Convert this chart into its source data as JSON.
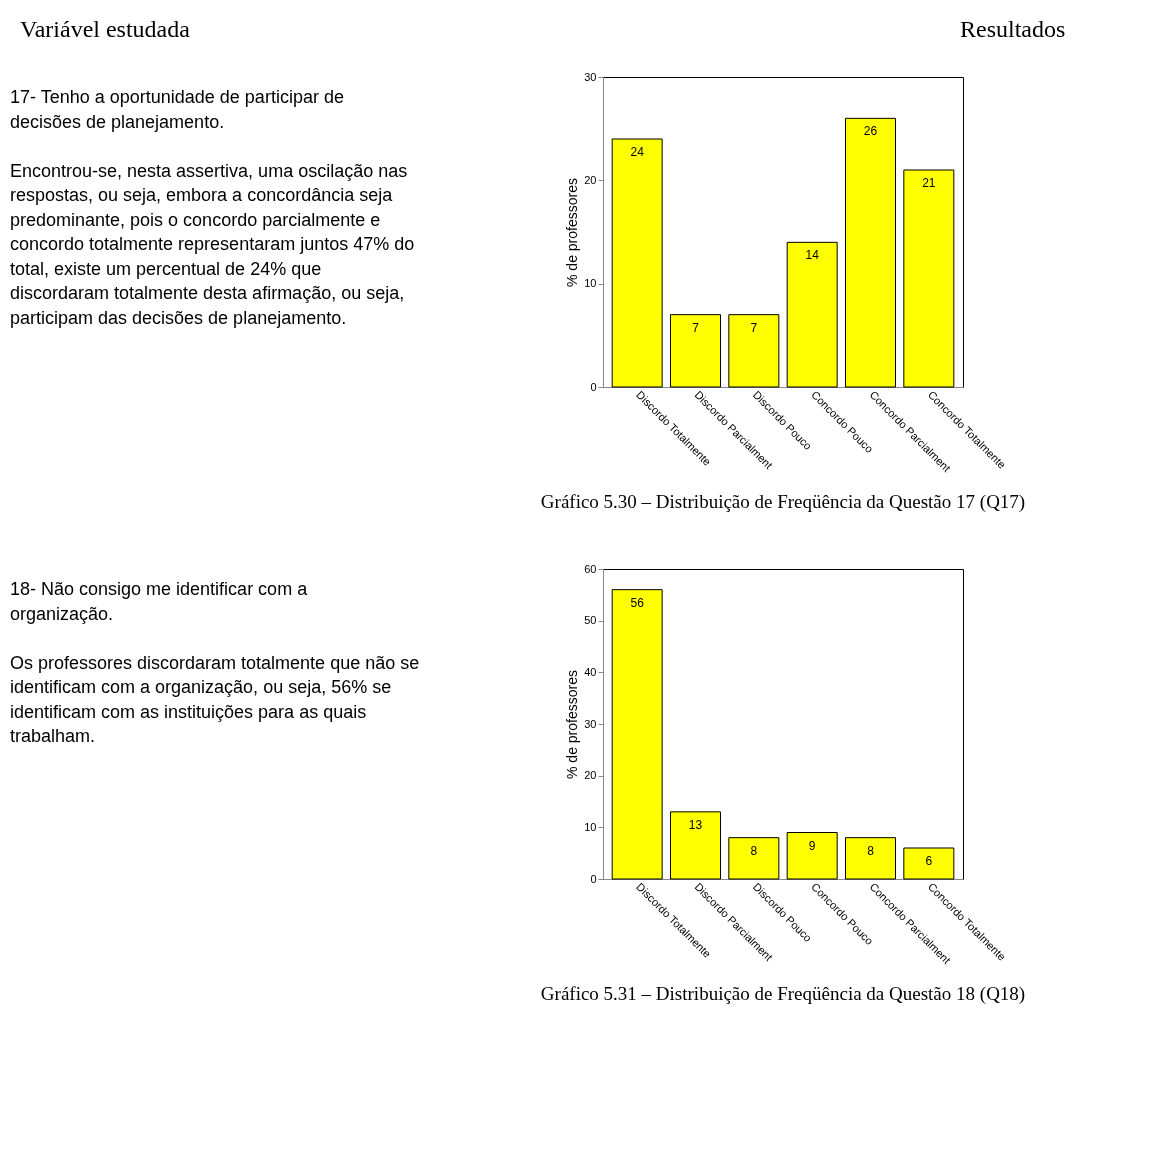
{
  "chart_data": [
    {
      "type": "other",
      "annotations": [
        "Variável estudada",
        "Resultados"
      ]
    },
    {
      "type": "other",
      "title": "17- Tenho a oportunidade de participar de decisões de planejamento.",
      "annotations": [
        "Encontrou-se, nesta assertiva, uma oscilação nas respostas, ou seja, embora a concordância seja predominante, pois o concordo parcialmente e concordo totalmente representaram juntos 47% do total, existe um percentual de 24% que discordaram totalmente desta afirmação, ou seja, participam das decisões de planejamento."
      ]
    },
    {
      "type": "bar",
      "categories": [
        "Discordo Totalmente",
        "Discordo Parcialment",
        "Discordo Pouco",
        "Concordo Pouco",
        "Concordo Parcialment",
        "Concordo Totalmente"
      ],
      "values": [
        24,
        7,
        7,
        14,
        26,
        21
      ],
      "color": "#ffff00",
      "ylabel": "% de professores",
      "ylim": [
        0,
        30
      ],
      "yticks": [
        0,
        10,
        20,
        30
      ],
      "data_labels": true,
      "annotations": [
        "Gráfico 5.30 – Distribuição de Freqüência da Questão 17 (Q17)"
      ]
    },
    {
      "type": "other",
      "title": "18- Não consigo me identificar com a organização.",
      "annotations": [
        "Os professores discordaram totalmente que não se identificam com a organização, ou seja, 56% se identificam com as instituições para as quais trabalham."
      ]
    },
    {
      "type": "bar",
      "categories": [
        "Discordo Totalmente",
        "Discordo Parcialment",
        "Discordo Pouco",
        "Concordo Pouco",
        "Concordo Parcialment",
        "Concordo Totalmente"
      ],
      "values": [
        56,
        13,
        8,
        9,
        8,
        6
      ],
      "color": "#ffff00",
      "ylabel": "% de professores",
      "ylim": [
        0,
        60
      ],
      "yticks": [
        0,
        10,
        20,
        30,
        40,
        50,
        60
      ],
      "data_labels": true,
      "annotations": [
        "Gráfico 5.31 – Distribuição de Freqüência da Questão 18 (Q18)"
      ]
    }
  ]
}
